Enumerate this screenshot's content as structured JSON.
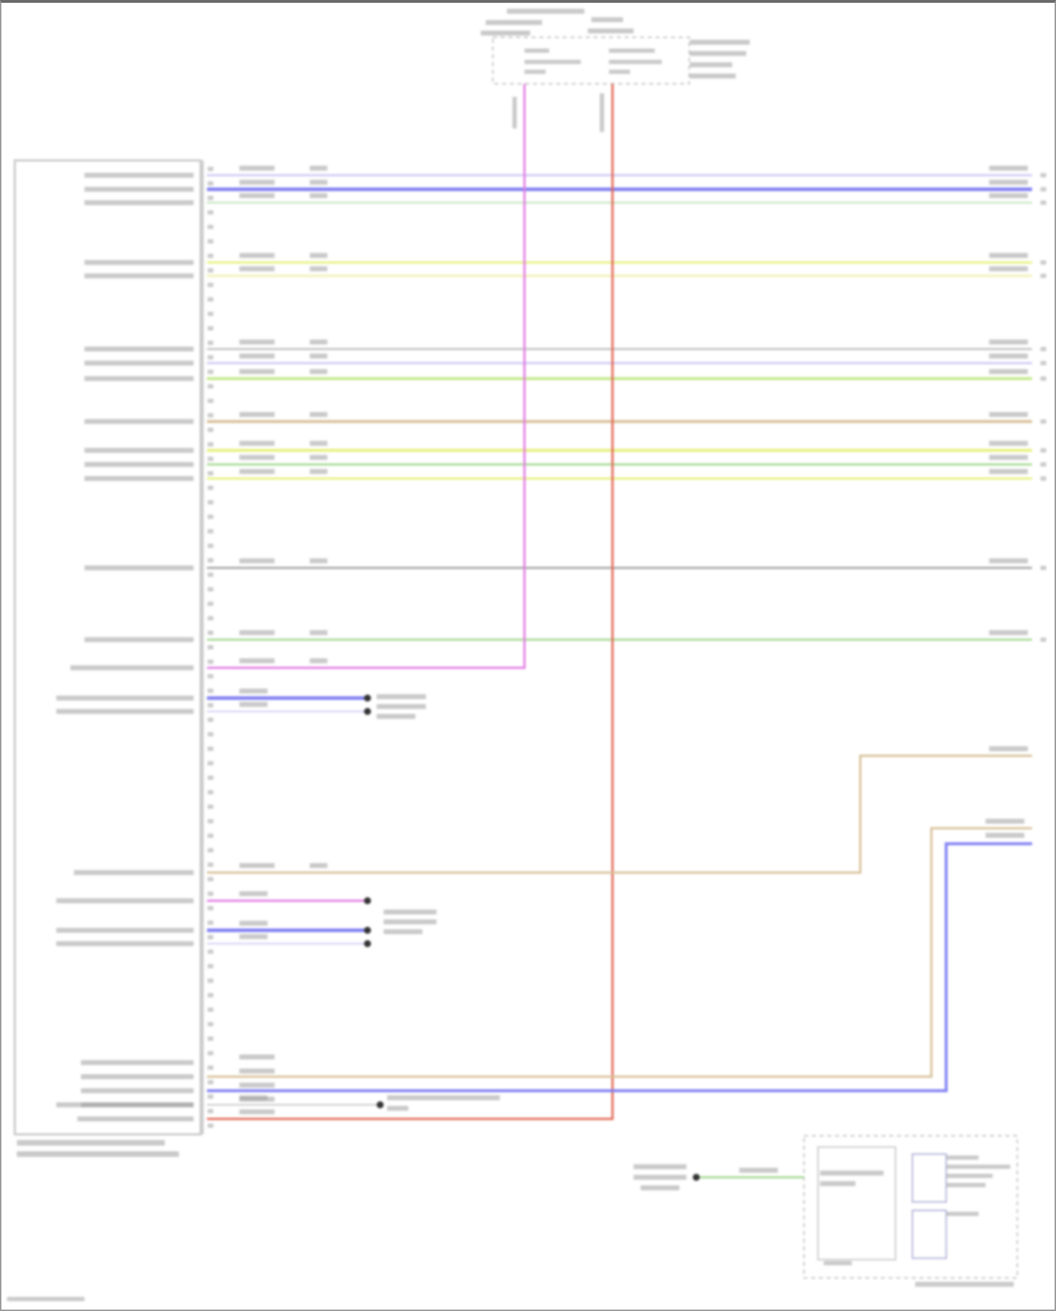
{
  "diagram": {
    "wire_colors": {
      "light_violet": "#cfc8f4",
      "blue": "#7f7ff2",
      "light_green": "#cde9c6",
      "yellow": "#e6f07a",
      "pale_yellow": "#f1f1b4",
      "gray": "#c4c4c4",
      "green": "#c2e888",
      "tan": "#d6bf96",
      "dark_gray": "#a6a6a6",
      "mid_green": "#a6da94",
      "pink": "#e27ae2",
      "red": "#e26450"
    },
    "connector_border": "#c8c8c8",
    "label_tone": "#9c9c9c"
  }
}
